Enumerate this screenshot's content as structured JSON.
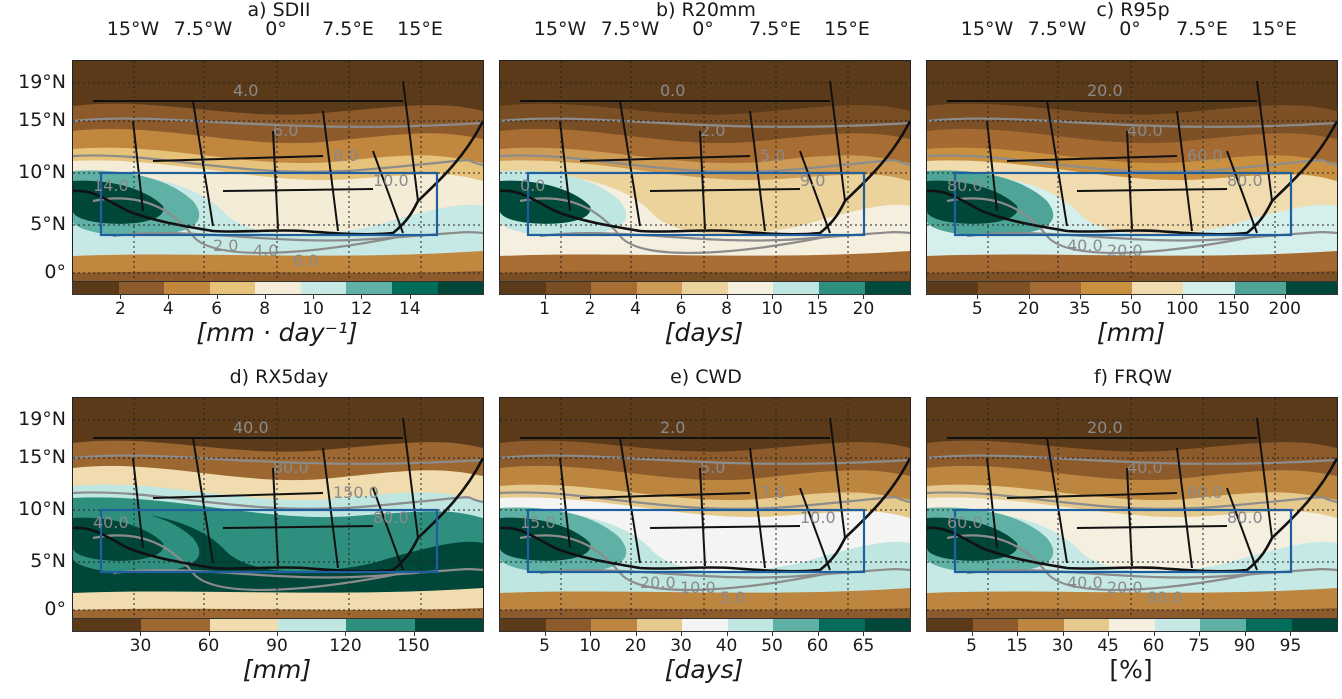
{
  "lon_ticks": [
    "15°W",
    "7.5°W",
    "0°",
    "7.5°E",
    "15°E"
  ],
  "lat_ticks": [
    "19°N",
    "15°N",
    "10°N",
    "5°N",
    "0°"
  ],
  "panels": [
    {
      "title": "a) SDII",
      "unit": "[mm · day⁻¹]",
      "colorbar_ticks": [
        "2",
        "4",
        "6",
        "8",
        "10",
        "12",
        "14"
      ],
      "colors": [
        "#5b3a1a",
        "#8c5a2b",
        "#c1873e",
        "#e6c27a",
        "#f4ecd6",
        "#c7e9e5",
        "#5fb1a5",
        "#016c59",
        "#00473a"
      ],
      "contour_labels": [
        "4.0",
        "6.0",
        "8.0",
        "10.0",
        "14.0",
        "2.0",
        "4.0",
        "6.0"
      ]
    },
    {
      "title": "b) R20mm",
      "unit": "[days]",
      "colorbar_ticks": [
        "1",
        "2",
        "4",
        "6",
        "8",
        "10",
        "15",
        "20"
      ],
      "colors": [
        "#5b3a1a",
        "#7a4e24",
        "#a86d33",
        "#cd9b55",
        "#ecd29b",
        "#f5efe0",
        "#bfe6e1",
        "#2e8f7f",
        "#004a3c"
      ],
      "contour_labels": [
        "0.0",
        "2.0",
        "5.0",
        "9.0",
        "0.0"
      ]
    },
    {
      "title": "c) R95p",
      "unit": "[mm]",
      "colorbar_ticks": [
        "5",
        "20",
        "35",
        "50",
        "100",
        "150",
        "200"
      ],
      "colors": [
        "#5b3a1a",
        "#7d5026",
        "#a46a31",
        "#c8903f",
        "#f0dcae",
        "#d4efec",
        "#4ea597",
        "#00473a"
      ],
      "contour_labels": [
        "20.0",
        "40.0",
        "60.0",
        "80.0",
        "80.0",
        "40.0",
        "20.0"
      ]
    },
    {
      "title": "d) RX5day",
      "unit": "[mm]",
      "colorbar_ticks": [
        "30",
        "60",
        "90",
        "120",
        "150"
      ],
      "colors": [
        "#5b3a1a",
        "#9c6731",
        "#f0dcae",
        "#bfe6e1",
        "#2e8f7f",
        "#00473a"
      ],
      "contour_labels": [
        "40.0",
        "80.0",
        "150.0",
        "80.0",
        "40.0"
      ]
    },
    {
      "title": "e) CWD",
      "unit": "[days]",
      "colorbar_ticks": [
        "5",
        "10",
        "20",
        "30",
        "40",
        "50",
        "60",
        "65"
      ],
      "colors": [
        "#5b3a1a",
        "#8c5a2b",
        "#bd8640",
        "#e6c98c",
        "#f4f4f4",
        "#bfe6e1",
        "#5fb1a5",
        "#016c59",
        "#00473a"
      ],
      "contour_labels": [
        "2.0",
        "5.0",
        "7.0",
        "10.0",
        "15.0",
        "20.0",
        "10.0",
        "5.0"
      ]
    },
    {
      "title": "f) FRQW",
      "unit": "[%]",
      "colorbar_ticks": [
        "5",
        "15",
        "30",
        "45",
        "60",
        "75",
        "90",
        "95"
      ],
      "colors": [
        "#5b3a1a",
        "#8c5a2b",
        "#bd8640",
        "#e6c98c",
        "#f5efe0",
        "#c7e9e5",
        "#5fb1a5",
        "#016c59",
        "#00473a"
      ],
      "contour_labels": [
        "20.0",
        "40.0",
        "60.0",
        "80.0",
        "60.0",
        "40.0",
        "20.0",
        "80.0"
      ]
    }
  ]
}
